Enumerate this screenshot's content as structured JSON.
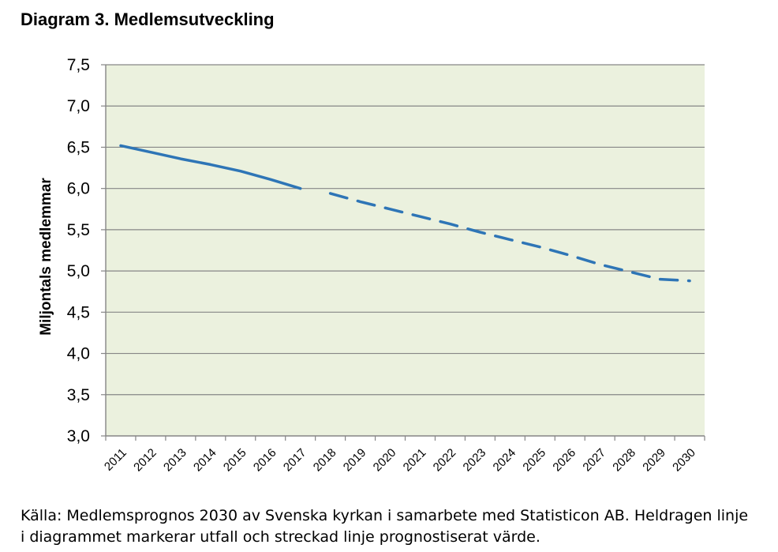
{
  "title": "Diagram 3. Medlemsutveckling",
  "source": {
    "line1": "Källa: Medlemsprognos 2030 av Svenska kyrkan i samarbete med Statisticon AB. Heldragen linje",
    "line2": "i diagrammet markerar utfall och streckad linje prognostiserat värde."
  },
  "chart_data": {
    "type": "line",
    "title": "Diagram 3. Medlemsutveckling",
    "xlabel": "",
    "ylabel": "Miljontals medlemmar",
    "ylim": [
      3.0,
      7.5
    ],
    "yticks": [
      "3,0",
      "3,5",
      "4,0",
      "4,5",
      "5,0",
      "5,5",
      "6,0",
      "6,5",
      "7,0",
      "7,5"
    ],
    "categories": [
      "2011",
      "2012",
      "2013",
      "2014",
      "2015",
      "2016",
      "2017",
      "2018",
      "2019",
      "2020",
      "2021",
      "2022",
      "2023",
      "2024",
      "2025",
      "2026",
      "2027",
      "2028",
      "2029",
      "2030"
    ],
    "grid": "horizontal",
    "plot_background": "#ebf1de",
    "line_color": "#2e75b6",
    "series": [
      {
        "style": "solid",
        "x": [
          "2011",
          "2012",
          "2013",
          "2014",
          "2015",
          "2016",
          "2017"
        ],
        "values": [
          6.52,
          6.44,
          6.36,
          6.29,
          6.21,
          6.11,
          6.0
        ]
      },
      {
        "style": "dashed",
        "x": [
          "2018",
          "2019",
          "2020",
          "2021",
          "2022",
          "2023",
          "2024",
          "2025",
          "2026",
          "2027",
          "2028",
          "2029",
          "2030"
        ],
        "values": [
          5.94,
          5.84,
          5.75,
          5.66,
          5.57,
          5.47,
          5.38,
          5.29,
          5.19,
          5.08,
          4.99,
          4.9,
          4.88
        ]
      }
    ]
  }
}
